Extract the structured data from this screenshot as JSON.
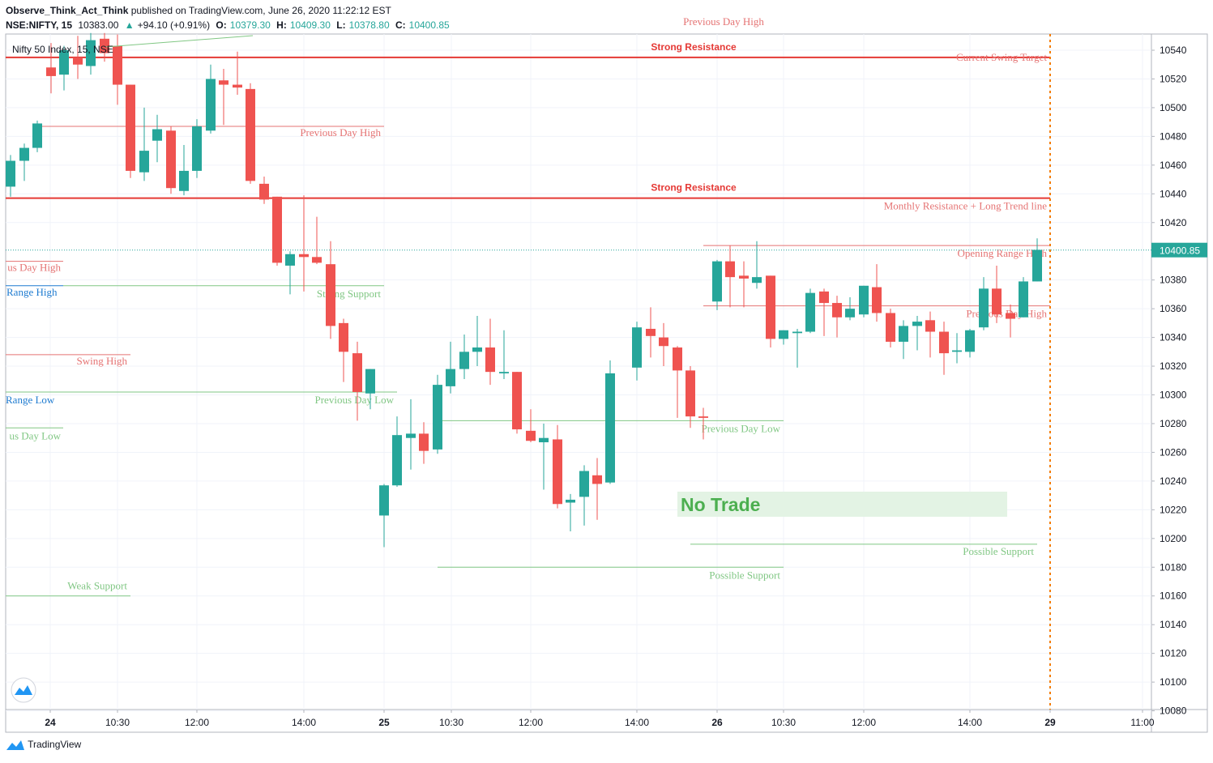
{
  "header": {
    "publisher": "Observe_Think_Act_Think",
    "published_text": "published on TradingView.com, June 26, 2020 11:22:12 EST",
    "symbol": "NSE:NIFTY, 15",
    "change": "+94.10 (+0.91%)",
    "change_arrow": "▲",
    "open_label": "O:",
    "open": "10379.30",
    "high_label": "H:",
    "high": "10409.30",
    "low_label": "L:",
    "low": "10378.80",
    "close_label": "C:",
    "close": "10400.85",
    "last": "10383.00"
  },
  "legend_title": "Nifty 50 Index, 15, NSE",
  "footer": {
    "brand": "TradingView"
  },
  "colors": {
    "up": "#26a69a",
    "down": "#ef5350",
    "resistance": "#e53935",
    "label_red": "#e57373",
    "label_green": "#81c784",
    "label_blue": "#1e7bd0",
    "no_trade_bg": "#e3f3e4",
    "no_trade_text": "#4caf50",
    "vertical_marker": "#f57c00"
  },
  "chart_data": {
    "type": "candlestick",
    "title": "Nifty 50 Index, 15, NSE",
    "ylim": [
      10075,
      10552
    ],
    "yticks": [
      10080,
      10100,
      10120,
      10140,
      10160,
      10180,
      10200,
      10220,
      10240,
      10260,
      10280,
      10300,
      10320,
      10340,
      10360,
      10380,
      10420,
      10440,
      10460,
      10480,
      10500,
      10520,
      10540
    ],
    "last_price": "10400.85",
    "xticks": [
      {
        "label": "24",
        "bold": true
      },
      {
        "label": "10:30",
        "bold": false
      },
      {
        "label": "12:00",
        "bold": false
      },
      {
        "label": "14:00",
        "bold": false
      },
      {
        "label": "25",
        "bold": true
      },
      {
        "label": "10:30",
        "bold": false
      },
      {
        "label": "12:00",
        "bold": false
      },
      {
        "label": "14:00",
        "bold": false
      },
      {
        "label": "26",
        "bold": true
      },
      {
        "label": "10:30",
        "bold": false
      },
      {
        "label": "12:00",
        "bold": false
      },
      {
        "label": "14:00",
        "bold": false
      },
      {
        "label": "29",
        "bold": true
      },
      {
        "label": "11:00",
        "bold": false
      }
    ],
    "candles": [
      {
        "o": 10445,
        "h": 10467,
        "l": 10438,
        "c": 10463
      },
      {
        "o": 10463,
        "h": 10475,
        "l": 10449,
        "c": 10472
      },
      {
        "o": 10472,
        "h": 10491,
        "l": 10469,
        "c": 10489
      },
      {
        "o": 10528,
        "h": 10545,
        "l": 10510,
        "c": 10522
      },
      {
        "o": 10523,
        "h": 10543,
        "l": 10512,
        "c": 10540
      },
      {
        "o": 10535,
        "h": 10550,
        "l": 10520,
        "c": 10530
      },
      {
        "o": 10529,
        "h": 10552,
        "l": 10523,
        "c": 10547
      },
      {
        "o": 10548,
        "h": 10552,
        "l": 10532,
        "c": 10538
      },
      {
        "o": 10543,
        "h": 10551,
        "l": 10502,
        "c": 10516
      },
      {
        "o": 10516,
        "h": 10516,
        "l": 10451,
        "c": 10456
      },
      {
        "o": 10455,
        "h": 10500,
        "l": 10449,
        "c": 10470
      },
      {
        "o": 10477,
        "h": 10495,
        "l": 10462,
        "c": 10485
      },
      {
        "o": 10484,
        "h": 10487,
        "l": 10440,
        "c": 10444
      },
      {
        "o": 10442,
        "h": 10474,
        "l": 10439,
        "c": 10456
      },
      {
        "o": 10456,
        "h": 10492,
        "l": 10451,
        "c": 10487
      },
      {
        "o": 10484,
        "h": 10530,
        "l": 10482,
        "c": 10520
      },
      {
        "o": 10519,
        "h": 10527,
        "l": 10488,
        "c": 10516
      },
      {
        "o": 10516,
        "h": 10539,
        "l": 10509,
        "c": 10514
      },
      {
        "o": 10513,
        "h": 10517,
        "l": 10447,
        "c": 10449
      },
      {
        "o": 10447,
        "h": 10452,
        "l": 10433,
        "c": 10436
      },
      {
        "o": 10438,
        "h": 10438,
        "l": 10390,
        "c": 10392
      },
      {
        "o": 10390,
        "h": 10400,
        "l": 10370,
        "c": 10398
      },
      {
        "o": 10398,
        "h": 10439,
        "l": 10372,
        "c": 10396
      },
      {
        "o": 10396,
        "h": 10424,
        "l": 10391,
        "c": 10392
      },
      {
        "o": 10391,
        "h": 10407,
        "l": 10339,
        "c": 10348
      },
      {
        "o": 10350,
        "h": 10353,
        "l": 10309,
        "c": 10330
      },
      {
        "o": 10329,
        "h": 10337,
        "l": 10282,
        "c": 10302
      },
      {
        "o": 10301,
        "h": 10318,
        "l": 10290,
        "c": 10318
      },
      {
        "o": 10216,
        "h": 10238,
        "l": 10194,
        "c": 10237
      },
      {
        "o": 10237,
        "h": 10285,
        "l": 10236,
        "c": 10272
      },
      {
        "o": 10270,
        "h": 10297,
        "l": 10248,
        "c": 10273
      },
      {
        "o": 10273,
        "h": 10281,
        "l": 10252,
        "c": 10261
      },
      {
        "o": 10262,
        "h": 10314,
        "l": 10259,
        "c": 10307
      },
      {
        "o": 10306,
        "h": 10337,
        "l": 10301,
        "c": 10318
      },
      {
        "o": 10318,
        "h": 10342,
        "l": 10311,
        "c": 10330
      },
      {
        "o": 10330,
        "h": 10355,
        "l": 10320,
        "c": 10333
      },
      {
        "o": 10333,
        "h": 10353,
        "l": 10307,
        "c": 10316
      },
      {
        "o": 10315,
        "h": 10345,
        "l": 10311,
        "c": 10316
      },
      {
        "o": 10316,
        "h": 10316,
        "l": 10273,
        "c": 10276
      },
      {
        "o": 10275,
        "h": 10290,
        "l": 10267,
        "c": 10268
      },
      {
        "o": 10267,
        "h": 10280,
        "l": 10234,
        "c": 10270
      },
      {
        "o": 10269,
        "h": 10279,
        "l": 10221,
        "c": 10224
      },
      {
        "o": 10225,
        "h": 10231,
        "l": 10205,
        "c": 10227
      },
      {
        "o": 10229,
        "h": 10251,
        "l": 10209,
        "c": 10247
      },
      {
        "o": 10244,
        "h": 10256,
        "l": 10213,
        "c": 10238
      },
      {
        "o": 10239,
        "h": 10324,
        "l": 10238,
        "c": 10315
      },
      {
        "o": 10319,
        "h": 10351,
        "l": 10310,
        "c": 10347
      },
      {
        "o": 10346,
        "h": 10361,
        "l": 10326,
        "c": 10341
      },
      {
        "o": 10340,
        "h": 10350,
        "l": 10320,
        "c": 10334
      },
      {
        "o": 10333,
        "h": 10334,
        "l": 10284,
        "c": 10317
      },
      {
        "o": 10317,
        "h": 10320,
        "l": 10277,
        "c": 10285
      },
      {
        "o": 10285,
        "h": 10291,
        "l": 10269,
        "c": 10284
      },
      {
        "o": 10365,
        "h": 10394,
        "l": 10359,
        "c": 10393
      },
      {
        "o": 10393,
        "h": 10404,
        "l": 10361,
        "c": 10382
      },
      {
        "o": 10383,
        "h": 10393,
        "l": 10361,
        "c": 10381
      },
      {
        "o": 10378,
        "h": 10407,
        "l": 10374,
        "c": 10382
      },
      {
        "o": 10383,
        "h": 10383,
        "l": 10333,
        "c": 10339
      },
      {
        "o": 10339,
        "h": 10345,
        "l": 10335,
        "c": 10345
      },
      {
        "o": 10343,
        "h": 10346,
        "l": 10319,
        "c": 10344
      },
      {
        "o": 10344,
        "h": 10374,
        "l": 10343,
        "c": 10371
      },
      {
        "o": 10372,
        "h": 10374,
        "l": 10341,
        "c": 10364
      },
      {
        "o": 10364,
        "h": 10369,
        "l": 10340,
        "c": 10354
      },
      {
        "o": 10354,
        "h": 10368,
        "l": 10352,
        "c": 10360
      },
      {
        "o": 10356,
        "h": 10376,
        "l": 10354,
        "c": 10376
      },
      {
        "o": 10375,
        "h": 10391,
        "l": 10351,
        "c": 10357
      },
      {
        "o": 10357,
        "h": 10360,
        "l": 10333,
        "c": 10337
      },
      {
        "o": 10337,
        "h": 10352,
        "l": 10325,
        "c": 10348
      },
      {
        "o": 10348,
        "h": 10355,
        "l": 10331,
        "c": 10351
      },
      {
        "o": 10352,
        "h": 10358,
        "l": 10326,
        "c": 10344
      },
      {
        "o": 10344,
        "h": 10351,
        "l": 10314,
        "c": 10329
      },
      {
        "o": 10330,
        "h": 10343,
        "l": 10322,
        "c": 10331
      },
      {
        "o": 10330,
        "h": 10346,
        "l": 10326,
        "c": 10345
      },
      {
        "o": 10347,
        "h": 10382,
        "l": 10345,
        "c": 10374
      },
      {
        "o": 10374,
        "h": 10390,
        "l": 10350,
        "c": 10356
      },
      {
        "o": 10357,
        "h": 10363,
        "l": 10340,
        "c": 10353
      },
      {
        "o": 10354,
        "h": 10382,
        "l": 10354,
        "c": 10379
      },
      {
        "o": 10379,
        "h": 10409,
        "l": 10379,
        "c": 10401
      }
    ],
    "levels": [
      {
        "label": "Strong Resistance",
        "price": 10535,
        "style": "resistance"
      },
      {
        "label": "Strong Resistance",
        "price": 10437,
        "style": "resistance"
      },
      {
        "label": "Current Swing Target",
        "price": 10535,
        "style": "red_text"
      },
      {
        "label": "Monthly Resistance + Long Trend line",
        "price": 10437,
        "style": "red_text"
      },
      {
        "label": "Previous Day High",
        "price": 10553,
        "style": "red"
      },
      {
        "label": "Previous Day High",
        "price": 10487,
        "style": "red"
      },
      {
        "label": "us Day High",
        "price": 10393,
        "style": "red"
      },
      {
        "label": "Range High",
        "price": 10376,
        "style": "blue"
      },
      {
        "label": "Strong Support",
        "price": 10376,
        "style": "green"
      },
      {
        "label": "Swing High",
        "price": 10328,
        "style": "red"
      },
      {
        "label": "Previous Day Low",
        "price": 10302,
        "style": "green"
      },
      {
        "label": "Range  Low",
        "price": 10302,
        "style": "blue"
      },
      {
        "label": "us Day Low",
        "price": 10277,
        "style": "green"
      },
      {
        "label": "Previous Day Low",
        "price": 10282,
        "style": "green"
      },
      {
        "label": "Opening Range High",
        "price": 10404,
        "style": "red"
      },
      {
        "label": "Previous Day High",
        "price": 10362,
        "style": "red"
      },
      {
        "label": "Possible Support",
        "price": 10196,
        "style": "green"
      },
      {
        "label": "Possible Support",
        "price": 10180,
        "style": "green"
      },
      {
        "label": "Weak Support",
        "price": 10160,
        "style": "green"
      }
    ],
    "annotation": "No Trade"
  }
}
